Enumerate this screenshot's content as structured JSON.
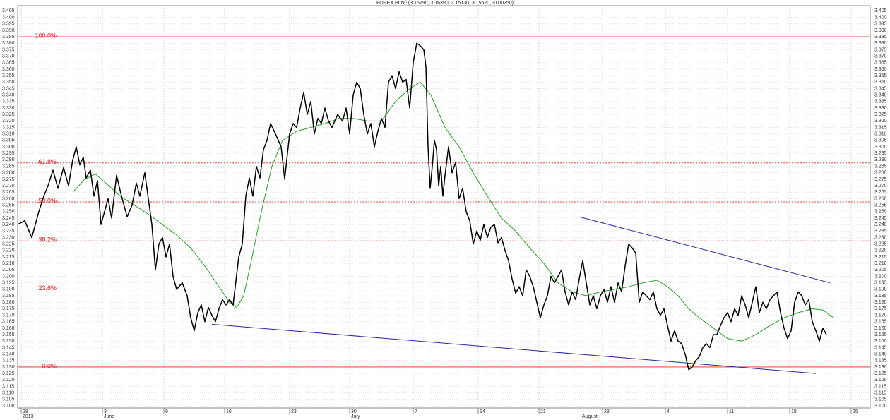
{
  "chart_data": {
    "type": "line",
    "title": "FOREX PLN^ (3.15790, 3.16390, 3.15130, 3.15520, -0.00250)",
    "xlim": [
      25,
      1232
    ],
    "ylim": [
      3.1,
      3.405
    ],
    "grid": true,
    "xticks": [
      {
        "value": 30,
        "label": "28"
      },
      {
        "value": 145,
        "label": "3"
      },
      {
        "value": 232,
        "label": "9"
      },
      {
        "value": 318,
        "label": "16"
      },
      {
        "value": 410,
        "label": "23"
      },
      {
        "value": 495,
        "label": "30"
      },
      {
        "value": 585,
        "label": "7"
      },
      {
        "value": 677,
        "label": "14"
      },
      {
        "value": 763,
        "label": "21"
      },
      {
        "value": 853,
        "label": "28"
      },
      {
        "value": 942,
        "label": "4"
      },
      {
        "value": 1030,
        "label": "11"
      },
      {
        "value": 1118,
        "label": "18"
      },
      {
        "value": 1205,
        "label": "25"
      }
    ],
    "month_labels": [
      {
        "value": 30,
        "label": "2013"
      },
      {
        "value": 145,
        "label": "June"
      },
      {
        "value": 495,
        "label": "July"
      },
      {
        "value": 822,
        "label": "August"
      }
    ],
    "yticks": [
      {
        "value": 3.1,
        "label": "3.100"
      },
      3.105,
      {
        "value": 3.11,
        "label": "3.110"
      },
      3.115,
      {
        "value": 3.12,
        "label": "3.120"
      },
      3.125,
      {
        "value": 3.13,
        "label": "3.130"
      },
      3.135,
      {
        "value": 3.14,
        "label": "3.140"
      },
      3.145,
      {
        "value": 3.15,
        "label": "3.150"
      },
      3.155,
      {
        "value": 3.16,
        "label": "3.160"
      },
      3.165,
      {
        "value": 3.17,
        "label": "3.170"
      },
      3.175,
      {
        "value": 3.18,
        "label": "3.180"
      },
      3.185,
      {
        "value": 3.19,
        "label": "3.190"
      },
      3.195,
      {
        "value": 3.2,
        "label": "3.200"
      },
      3.205,
      {
        "value": 3.21,
        "label": "3.210"
      },
      3.215,
      {
        "value": 3.22,
        "label": "3.220"
      },
      3.225,
      {
        "value": 3.23,
        "label": "3.230"
      },
      3.235,
      {
        "value": 3.24,
        "label": "3.240"
      },
      3.245,
      {
        "value": 3.25,
        "label": "3.250"
      },
      3.255,
      {
        "value": 3.26,
        "label": "3.260"
      },
      3.265,
      {
        "value": 3.27,
        "label": "3.270"
      },
      3.275,
      {
        "value": 3.28,
        "label": "3.280"
      },
      3.285,
      {
        "value": 3.29,
        "label": "3.290"
      },
      3.295,
      {
        "value": 3.3,
        "label": "3.300"
      },
      3.305,
      {
        "value": 3.31,
        "label": "3.310"
      },
      3.315,
      {
        "value": 3.32,
        "label": "3.320"
      },
      3.325,
      {
        "value": 3.33,
        "label": "3.330"
      },
      3.335,
      {
        "value": 3.34,
        "label": "3.340"
      },
      3.345,
      {
        "value": 3.35,
        "label": "3.350"
      },
      3.355,
      {
        "value": 3.36,
        "label": "3.360"
      },
      3.365,
      {
        "value": 3.37,
        "label": "3.370"
      },
      3.375,
      {
        "value": 3.38,
        "label": "3.380"
      },
      3.385,
      {
        "value": 3.39,
        "label": "3.390"
      },
      3.395,
      {
        "value": 3.4,
        "label": "3.400"
      },
      3.405
    ],
    "levels": [
      {
        "label": "100.0%",
        "value": 3.385,
        "style": "solid"
      },
      {
        "label": "61.8%",
        "value": 3.2876,
        "style": "dotted"
      },
      {
        "label": "50.0%",
        "value": 3.2575,
        "style": "dotted"
      },
      {
        "label": "38.2%",
        "value": 3.2274,
        "style": "dotted"
      },
      {
        "label": "23.6%",
        "value": 3.1902,
        "style": "dotted"
      },
      {
        "label": "0.0%",
        "value": 3.13,
        "style": "solid"
      }
    ],
    "level_color": "#e02020",
    "series": [
      {
        "color": "#000000",
        "x": [
          25,
          35,
          45,
          55,
          62,
          68,
          75,
          82,
          90,
          97,
          103,
          108,
          113,
          118,
          122,
          128,
          133,
          138,
          143,
          148,
          153,
          158,
          165,
          172,
          180,
          187,
          193,
          198,
          205,
          210,
          215,
          220,
          225,
          230,
          235,
          240,
          245,
          250,
          258,
          265,
          270,
          275,
          280,
          285,
          290,
          295,
          300,
          305,
          310,
          315,
          320,
          325,
          330,
          338,
          343,
          348,
          353,
          358,
          363,
          368,
          373,
          378,
          383,
          390,
          398,
          403,
          410,
          415,
          420,
          425,
          430,
          435,
          440,
          445,
          450,
          455,
          460,
          465,
          470,
          478,
          485,
          490,
          495,
          500,
          505,
          510,
          515,
          520,
          525,
          530,
          535,
          540,
          545,
          550,
          555,
          560,
          565,
          570,
          575,
          580,
          585,
          590,
          595,
          600,
          603,
          606,
          609,
          612,
          615,
          618,
          621,
          624,
          627,
          630,
          635,
          640,
          645,
          650,
          655,
          660,
          665,
          670,
          675,
          680,
          685,
          690,
          695,
          700,
          705,
          710,
          715,
          720,
          725,
          730,
          735,
          740,
          745,
          750,
          755,
          760,
          765,
          770,
          775,
          780,
          785,
          790,
          795,
          800,
          805,
          810,
          815,
          820,
          825,
          830,
          835,
          840,
          845,
          850,
          855,
          860,
          865,
          870,
          875,
          880,
          885,
          890,
          895,
          900,
          905,
          910,
          915,
          920,
          925,
          930,
          935,
          940,
          945,
          950,
          955,
          960,
          965,
          970,
          975,
          980,
          985,
          990,
          995,
          1000,
          1005,
          1010,
          1015,
          1020,
          1025,
          1030,
          1035,
          1040,
          1045,
          1050,
          1055,
          1060,
          1065,
          1070,
          1075,
          1080,
          1085,
          1090,
          1095,
          1100,
          1105,
          1110,
          1115,
          1120,
          1125,
          1130,
          1135,
          1140,
          1145,
          1150,
          1155,
          1160,
          1165,
          1170
        ],
        "values": [
          3.24,
          3.243,
          3.23,
          3.25,
          3.262,
          3.27,
          3.282,
          3.268,
          3.284,
          3.27,
          3.29,
          3.3,
          3.286,
          3.292,
          3.276,
          3.282,
          3.262,
          3.274,
          3.24,
          3.25,
          3.26,
          3.245,
          3.278,
          3.262,
          3.246,
          3.255,
          3.272,
          3.262,
          3.28,
          3.26,
          3.24,
          3.205,
          3.225,
          3.23,
          3.215,
          3.225,
          3.2,
          3.19,
          3.195,
          3.185,
          3.168,
          3.158,
          3.172,
          3.178,
          3.165,
          3.176,
          3.17,
          3.165,
          3.175,
          3.182,
          3.178,
          3.182,
          3.178,
          3.215,
          3.225,
          3.262,
          3.276,
          3.262,
          3.285,
          3.276,
          3.298,
          3.305,
          3.318,
          3.31,
          3.3,
          3.275,
          3.31,
          3.318,
          3.315,
          3.33,
          3.342,
          3.325,
          3.335,
          3.31,
          3.322,
          3.318,
          3.33,
          3.32,
          3.315,
          3.325,
          3.32,
          3.33,
          3.31,
          3.34,
          3.35,
          3.345,
          3.325,
          3.31,
          3.318,
          3.3,
          3.312,
          3.322,
          3.315,
          3.35,
          3.355,
          3.345,
          3.358,
          3.35,
          3.352,
          3.33,
          3.365,
          3.38,
          3.378,
          3.375,
          3.362,
          3.3,
          3.268,
          3.285,
          3.305,
          3.298,
          3.27,
          3.285,
          3.262,
          3.278,
          3.3,
          3.28,
          3.288,
          3.26,
          3.268,
          3.25,
          3.243,
          3.225,
          3.235,
          3.228,
          3.24,
          3.23,
          3.238,
          3.24,
          3.226,
          3.23,
          3.22,
          3.212,
          3.198,
          3.187,
          3.192,
          3.185,
          3.205,
          3.2,
          3.192,
          3.18,
          3.168,
          3.178,
          3.185,
          3.2,
          3.195,
          3.2,
          3.205,
          3.188,
          3.178,
          3.188,
          3.182,
          3.198,
          3.212,
          3.195,
          3.178,
          3.185,
          3.175,
          3.185,
          3.19,
          3.18,
          3.192,
          3.18,
          3.195,
          3.188,
          3.208,
          3.225,
          3.222,
          3.218,
          3.18,
          3.188,
          3.185,
          3.182,
          3.188,
          3.175,
          3.17,
          3.175,
          3.162,
          3.15,
          3.158,
          3.15,
          3.148,
          3.14,
          3.128,
          3.13,
          3.135,
          3.138,
          3.145,
          3.148,
          3.145,
          3.155,
          3.155,
          3.162,
          3.168,
          3.172,
          3.165,
          3.175,
          3.17,
          3.185,
          3.178,
          3.168,
          3.18,
          3.192,
          3.172,
          3.18,
          3.175,
          3.182,
          3.185,
          3.188,
          3.172,
          3.16,
          3.152,
          3.158,
          3.18,
          3.188,
          3.185,
          3.178,
          3.182,
          3.165,
          3.158,
          3.15,
          3.16,
          3.155
        ]
      },
      {
        "color": "#22a022",
        "x": [
          103,
          120,
          135,
          150,
          170,
          190,
          210,
          230,
          250,
          270,
          290,
          310,
          325,
          335,
          345,
          355,
          370,
          385,
          400,
          420,
          440,
          460,
          480,
          500,
          520,
          540,
          560,
          580,
          595,
          610,
          630,
          650,
          670,
          690,
          710,
          730,
          750,
          770,
          790,
          810,
          830,
          850,
          870,
          890,
          910,
          930,
          945,
          960,
          975,
          990,
          1010,
          1030,
          1050,
          1070,
          1090,
          1110,
          1130,
          1150,
          1165,
          1180
        ],
        "values": [
          3.265,
          3.275,
          3.279,
          3.272,
          3.262,
          3.255,
          3.248,
          3.24,
          3.232,
          3.222,
          3.208,
          3.192,
          3.18,
          3.176,
          3.185,
          3.21,
          3.25,
          3.285,
          3.305,
          3.312,
          3.315,
          3.318,
          3.322,
          3.322,
          3.32,
          3.32,
          3.335,
          3.345,
          3.35,
          3.34,
          3.315,
          3.3,
          3.28,
          3.262,
          3.245,
          3.235,
          3.222,
          3.21,
          3.195,
          3.188,
          3.185,
          3.188,
          3.19,
          3.192,
          3.195,
          3.197,
          3.192,
          3.185,
          3.175,
          3.168,
          3.16,
          3.152,
          3.15,
          3.155,
          3.162,
          3.168,
          3.172,
          3.175,
          3.174,
          3.168
        ]
      }
    ],
    "trendlines": [
      {
        "color": "#2828a0",
        "x": [
          820,
          1175
        ],
        "values": [
          3.246,
          3.195
        ]
      },
      {
        "color": "#2828a0",
        "x": [
          300,
          1155
        ],
        "values": [
          3.163,
          3.125
        ]
      }
    ]
  }
}
